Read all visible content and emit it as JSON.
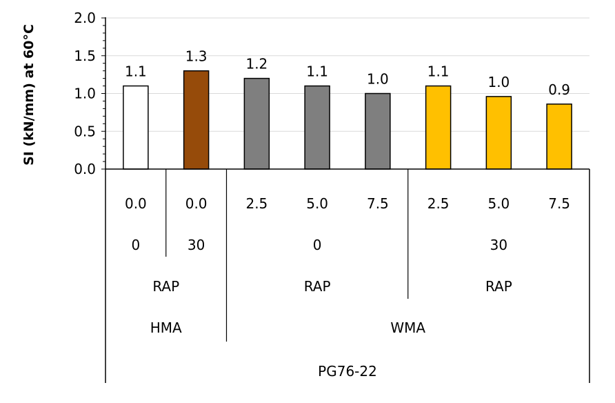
{
  "chart_data": {
    "type": "bar",
    "ylabel": "SI (kN/mm) at 60°C",
    "ylim": [
      0,
      2.0
    ],
    "yticks": [
      "0.0",
      "0.5",
      "1.0",
      "1.5",
      "2.0"
    ],
    "grid": true,
    "bars": [
      {
        "value": 1.1,
        "label": "1.1",
        "dosage": "0.0",
        "rap_pct": "0",
        "color": "#ffffff"
      },
      {
        "value": 1.3,
        "label": "1.3",
        "dosage": "0.0",
        "rap_pct": "30",
        "color": "#964B0A"
      },
      {
        "value": 1.2,
        "label": "1.2",
        "dosage": "2.5",
        "rap_pct": "0",
        "color": "#7F7F7F"
      },
      {
        "value": 1.1,
        "label": "1.1",
        "dosage": "5.0",
        "rap_pct": "0",
        "color": "#7F7F7F"
      },
      {
        "value": 1.0,
        "label": "1.0",
        "dosage": "7.5",
        "rap_pct": "0",
        "color": "#7F7F7F"
      },
      {
        "value": 1.1,
        "label": "1.1",
        "dosage": "2.5",
        "rap_pct": "30",
        "color": "#FFC000"
      },
      {
        "value": 0.96,
        "label": "1.0",
        "dosage": "5.0",
        "rap_pct": "30",
        "color": "#FFC000"
      },
      {
        "value": 0.86,
        "label": "0.9",
        "dosage": "7.5",
        "rap_pct": "30",
        "color": "#FFC000"
      }
    ],
    "groups": {
      "rap_level": [
        {
          "label": "0",
          "span": [
            0,
            0
          ]
        },
        {
          "label": "30",
          "span": [
            1,
            1
          ]
        },
        {
          "label": "0",
          "span": [
            2,
            4
          ]
        },
        {
          "label": "30",
          "span": [
            5,
            7
          ]
        }
      ],
      "rap": [
        {
          "label": "RAP",
          "span": [
            0,
            1
          ]
        },
        {
          "label": "RAP",
          "span": [
            2,
            4
          ]
        },
        {
          "label": "RAP",
          "span": [
            5,
            7
          ]
        }
      ],
      "mix": [
        {
          "label": "HMA",
          "span": [
            0,
            1
          ]
        },
        {
          "label": "WMA",
          "span": [
            2,
            7
          ]
        }
      ],
      "binder": [
        {
          "label": "PG76-22",
          "span": [
            0,
            7
          ]
        }
      ]
    }
  }
}
